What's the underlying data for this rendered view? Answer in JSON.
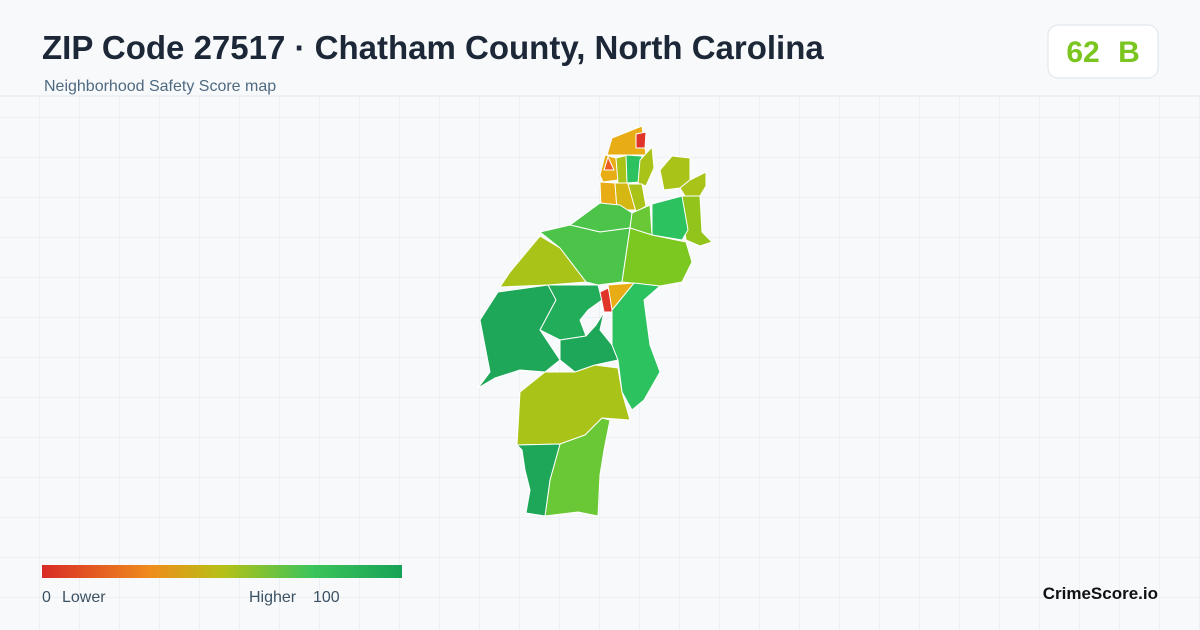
{
  "header": {
    "title": "ZIP Code 27517 · Chatham County, North Carolina",
    "subtitle": "Neighborhood Safety Score map"
  },
  "score": {
    "value": 62,
    "grade": "B"
  },
  "legend": {
    "min": 0,
    "min_label": "Lower",
    "max_label": "Higher",
    "max": 100
  },
  "brand": "CrimeScore.io"
}
